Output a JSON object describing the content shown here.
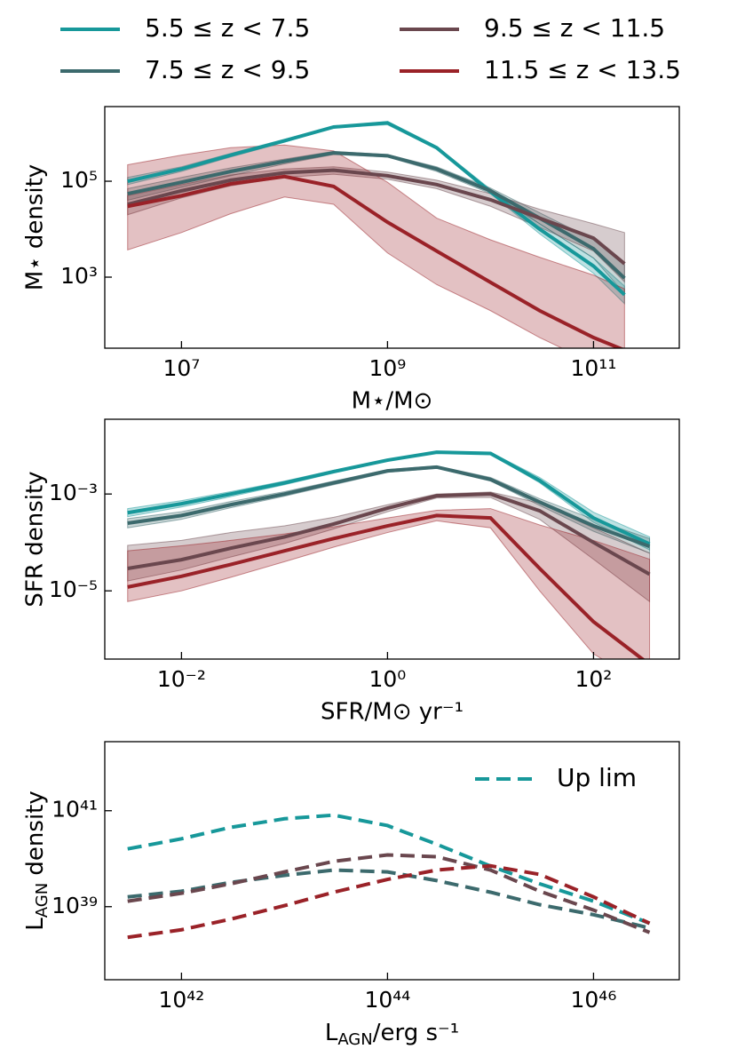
{
  "chart_data": [
    {
      "type": "line",
      "xlabel": "M⋆/M⊙",
      "ylabel": "M⋆ density",
      "log_x": true,
      "log_y": true,
      "x": [
        3000000,
        10000000,
        30000000,
        100000000,
        300000000,
        1000000000,
        3000000000,
        10000000000,
        30000000000,
        100000000000,
        200000000000
      ],
      "xlim": [
        1800000,
        680000000000
      ],
      "ylim": [
        33,
        3600000
      ],
      "xticks": [
        {
          "value": 10000000,
          "label": "10⁷"
        },
        {
          "value": 1000000000,
          "label": "10⁹"
        },
        {
          "value": 100000000000,
          "label": "10¹¹"
        }
      ],
      "yticks": [
        {
          "value": 1000,
          "label": "10³"
        },
        {
          "value": 100000,
          "label": "10⁵"
        }
      ],
      "series": [
        {
          "name": "5.5 ≤ z < 7.5",
          "color": "#17989a",
          "values": [
            100000,
            180000,
            350000,
            700000,
            1350000,
            1650000,
            500000,
            60000,
            10000,
            1700,
            430
          ],
          "lower": [
            85000,
            160000,
            320000,
            650000,
            1300000,
            1500000,
            470000,
            55000,
            8000,
            1200,
            280
          ],
          "upper": [
            120000,
            200000,
            380000,
            750000,
            1400000,
            1750000,
            530000,
            68000,
            13000,
            2500,
            650
          ]
        },
        {
          "name": "7.5 ≤ z < 9.5",
          "color": "#3c6a6d",
          "values": [
            55000,
            95000,
            160000,
            260000,
            390000,
            340000,
            180000,
            63000,
            17000,
            3900,
            950
          ],
          "lower": [
            40000,
            75000,
            130000,
            230000,
            360000,
            320000,
            160000,
            55000,
            13000,
            2500,
            450
          ],
          "upper": [
            70000,
            120000,
            190000,
            290000,
            420000,
            360000,
            200000,
            72000,
            22000,
            6000,
            1800
          ]
        },
        {
          "name": "9.5 ≤ z < 11.5",
          "color": "#6a474e",
          "values": [
            33000,
            63000,
            105000,
            150000,
            170000,
            130000,
            85000,
            41000,
            17000,
            6500,
            1900
          ],
          "lower": [
            20000,
            45000,
            80000,
            120000,
            140000,
            110000,
            70000,
            30000,
            11000,
            3500,
            800
          ],
          "upper": [
            50000,
            85000,
            135000,
            180000,
            200000,
            155000,
            105000,
            55000,
            26000,
            13000,
            8500
          ]
        },
        {
          "name": "11.5 ≤ z < 13.5",
          "color": "#9a2228",
          "values": [
            30000,
            50000,
            88000,
            125000,
            78000,
            14000,
            3500,
            780,
            200,
            55,
            30
          ],
          "lower": [
            3700,
            8500,
            21000,
            47000,
            33000,
            3200,
            700,
            200,
            55,
            16,
            10
          ],
          "upper": [
            220000,
            350000,
            500000,
            570000,
            430000,
            95000,
            17000,
            6000,
            2600,
            1100,
            570
          ]
        }
      ]
    },
    {
      "type": "line",
      "xlabel": "SFR/M⊙ yr⁻¹",
      "ylabel": "SFR density",
      "log_x": true,
      "log_y": true,
      "x": [
        0.003,
        0.01,
        0.03,
        0.1,
        0.3,
        1,
        3,
        10,
        30,
        100,
        350
      ],
      "xlim": [
        0.0018,
        680
      ],
      "ylim": [
        3.9e-07,
        0.035
      ],
      "xticks": [
        {
          "value": 0.01,
          "label": "10⁻²"
        },
        {
          "value": 1,
          "label": "10⁰"
        },
        {
          "value": 100,
          "label": "10²"
        }
      ],
      "yticks": [
        {
          "value": 1e-05,
          "label": "10⁻⁵"
        },
        {
          "value": 0.001,
          "label": "10⁻³"
        }
      ],
      "series": [
        {
          "color": "#17989a",
          "values": [
            0.00041,
            0.00063,
            0.001,
            0.0017,
            0.0029,
            0.005,
            0.0073,
            0.0069,
            0.0019,
            0.00032,
            9.3e-05
          ],
          "lower": [
            0.00034,
            0.00054,
            0.00088,
            0.00155,
            0.0027,
            0.0048,
            0.007,
            0.0066,
            0.0017,
            0.00026,
            7e-05
          ],
          "upper": [
            0.0005,
            0.00073,
            0.00112,
            0.00185,
            0.0031,
            0.0052,
            0.0076,
            0.0073,
            0.0022,
            0.00042,
            0.00013
          ]
        },
        {
          "color": "#3c6a6d",
          "values": [
            0.00025,
            0.00036,
            0.0006,
            0.001,
            0.0017,
            0.003,
            0.0036,
            0.002,
            0.00068,
            0.00022,
            8.3e-05
          ],
          "lower": [
            0.0002,
            0.0003,
            0.00052,
            0.0009,
            0.00155,
            0.0028,
            0.0034,
            0.00185,
            0.00058,
            0.00017,
            6e-05
          ],
          "upper": [
            0.00031,
            0.00043,
            0.0007,
            0.00112,
            0.00185,
            0.0032,
            0.0038,
            0.0022,
            0.0008,
            0.0003,
            0.00012
          ]
        },
        {
          "color": "#6a474e",
          "values": [
            2.9e-05,
            4.4e-05,
            7.6e-05,
            0.00013,
            0.00024,
            0.00051,
            0.00092,
            0.001,
            0.00045,
            0.0001,
            2.2e-05
          ],
          "lower": [
            1.6e-05,
            2.7e-05,
            5e-05,
            9.5e-05,
            0.00019,
            0.00043,
            0.00083,
            0.00085,
            0.0003,
            4.5e-05,
            6e-06
          ],
          "upper": [
            8.7e-05,
            0.00011,
            0.00016,
            0.00022,
            0.00033,
            0.0006,
            0.001,
            0.0011,
            0.00065,
            0.0002,
            6e-05
          ]
        },
        {
          "color": "#9a2228",
          "values": [
            1.2e-05,
            2e-05,
            3.5e-05,
            6.7e-05,
            0.00012,
            0.00022,
            0.00036,
            0.00032,
            2.9e-05,
            2.3e-06,
            3e-07
          ],
          "lower": [
            6e-06,
            1e-05,
            1.9e-05,
            4e-05,
            8e-05,
            0.00016,
            0.00028,
            0.0002,
            1e-05,
            5e-07,
            1e-07
          ],
          "upper": [
            6.7e-05,
            8.5e-05,
            0.00011,
            0.00015,
            0.00021,
            0.00032,
            0.00046,
            0.0005,
            0.00023,
            0.00011,
            4.5e-05
          ]
        }
      ]
    },
    {
      "type": "line",
      "line_style": "dashed",
      "xlabel": {
        "base": "L",
        "sub": "AGN",
        "rest": "/erg s⁻¹"
      },
      "ylabel": {
        "base": "L",
        "sub": "AGN",
        "rest": " density"
      },
      "log_x": true,
      "log_y": true,
      "legend": {
        "label": "Up lim",
        "color": "#17989a",
        "position": "upper right"
      },
      "x": [
        3e+41,
        1e+42,
        3e+42,
        1e+43,
        3e+43,
        1e+44,
        3e+44,
        1e+45,
        3e+45,
        1e+46,
        3.5e+46
      ],
      "xlim": [
        1.8e+41,
        6.8e+46
      ],
      "ylim": [
        3e+37,
        2.75e+42
      ],
      "xticks": [
        {
          "value": 1e+42,
          "label": "10⁴²"
        },
        {
          "value": 1e+44,
          "label": "10⁴⁴"
        },
        {
          "value": 1e+46,
          "label": "10⁴⁶"
        }
      ],
      "yticks": [
        {
          "value": 1e+39,
          "label": "10³⁹"
        },
        {
          "value": 1e+41,
          "label": "10⁴¹"
        }
      ],
      "series": [
        {
          "color": "#17989a",
          "values": [
            1.6e+40,
            2.6e+40,
            4.5e+40,
            6.8e+40,
            8.1e+40,
            4.9e+40,
            2e+40,
            7e+39,
            3e+39,
            1.3e+39,
            4.5e+38
          ]
        },
        {
          "color": "#3c6a6d",
          "values": [
            1.6e+39,
            2.1e+39,
            3.2e+39,
            4.5e+39,
            5.8e+39,
            5.3e+39,
            3.5e+39,
            2e+39,
            1.1e+39,
            6.8e+38,
            3.6e+38
          ]
        },
        {
          "color": "#6a474e",
          "values": [
            1.3e+39,
            1.9e+39,
            3e+39,
            5.3e+39,
            8.8e+39,
            1.2e+40,
            1.1e+40,
            5.8e+39,
            2.1e+39,
            8.5e+38,
            2.9e+38
          ]
        },
        {
          "color": "#9a2228",
          "values": [
            2.3e+38,
            3.3e+38,
            5.5e+38,
            1.05e+39,
            2e+39,
            3.7e+39,
            5.8e+39,
            7.1e+39,
            4.7e+39,
            1.6e+39,
            4.5e+38
          ]
        }
      ]
    }
  ]
}
